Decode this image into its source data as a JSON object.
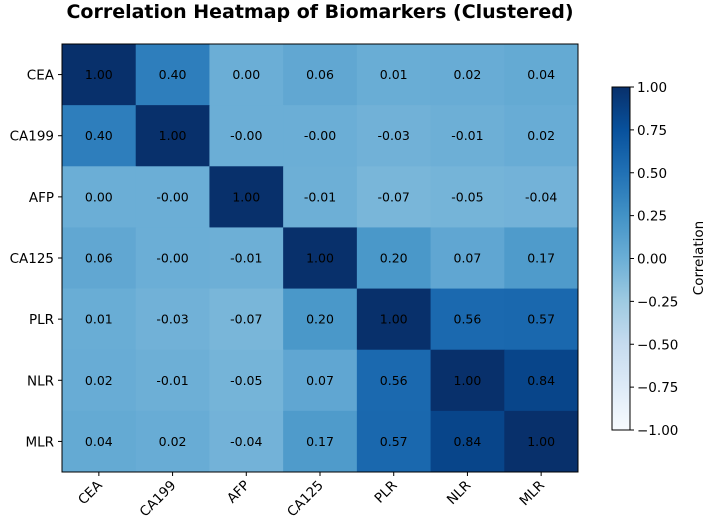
{
  "chart_data": {
    "type": "heatmap",
    "title": "Correlation Heatmap of Biomarkers (Clustered)",
    "rows": [
      "CEA",
      "CA199",
      "AFP",
      "CA125",
      "PLR",
      "NLR",
      "MLR"
    ],
    "columns": [
      "CEA",
      "CA199",
      "AFP",
      "CA125",
      "PLR",
      "NLR",
      "MLR"
    ],
    "values": [
      [
        1.0,
        0.4,
        0.0,
        0.06,
        0.01,
        0.02,
        0.04
      ],
      [
        0.4,
        1.0,
        -0.001,
        -0.001,
        -0.03,
        -0.01,
        0.02
      ],
      [
        0.0,
        -0.001,
        1.0,
        -0.01,
        -0.07,
        -0.05,
        -0.04
      ],
      [
        0.06,
        -0.001,
        -0.01,
        1.0,
        0.2,
        0.07,
        0.17
      ],
      [
        0.01,
        -0.03,
        -0.07,
        0.2,
        1.0,
        0.56,
        0.57
      ],
      [
        0.02,
        -0.01,
        -0.05,
        0.07,
        0.56,
        1.0,
        0.84
      ],
      [
        0.04,
        0.02,
        -0.04,
        0.17,
        0.57,
        0.84,
        1.0
      ]
    ],
    "cell_labels": [
      [
        "1.00",
        "0.40",
        "0.00",
        "0.06",
        "0.01",
        "0.02",
        "0.04"
      ],
      [
        "0.40",
        "1.00",
        "-0.00",
        "-0.00",
        "-0.03",
        "-0.01",
        "0.02"
      ],
      [
        "0.00",
        "-0.00",
        "1.00",
        "-0.01",
        "-0.07",
        "-0.05",
        "-0.04"
      ],
      [
        "0.06",
        "-0.00",
        "-0.01",
        "1.00",
        "0.20",
        "0.07",
        "0.17"
      ],
      [
        "0.01",
        "-0.03",
        "-0.07",
        "0.20",
        "1.00",
        "0.56",
        "0.57"
      ],
      [
        "0.02",
        "-0.01",
        "-0.05",
        "0.07",
        "0.56",
        "1.00",
        "0.84"
      ],
      [
        "0.04",
        "0.02",
        "-0.04",
        "0.17",
        "0.57",
        "0.84",
        "1.00"
      ]
    ],
    "colorbar": {
      "label": "Correlation",
      "range": [
        -1.0,
        1.0
      ],
      "ticks": [
        "1.00",
        "0.75",
        "0.50",
        "0.25",
        "0.00",
        "−0.25",
        "−0.50",
        "−0.75",
        "−1.00"
      ],
      "tick_values": [
        1.0,
        0.75,
        0.5,
        0.25,
        0.0,
        -0.25,
        -0.5,
        -0.75,
        -1.0
      ]
    },
    "colormap": {
      "name": "Blues",
      "stops": [
        "#f7fbff",
        "#deebf7",
        "#c6dbef",
        "#9ecae1",
        "#6baed6",
        "#4292c6",
        "#2171b5",
        "#08519c",
        "#08306b"
      ]
    }
  }
}
